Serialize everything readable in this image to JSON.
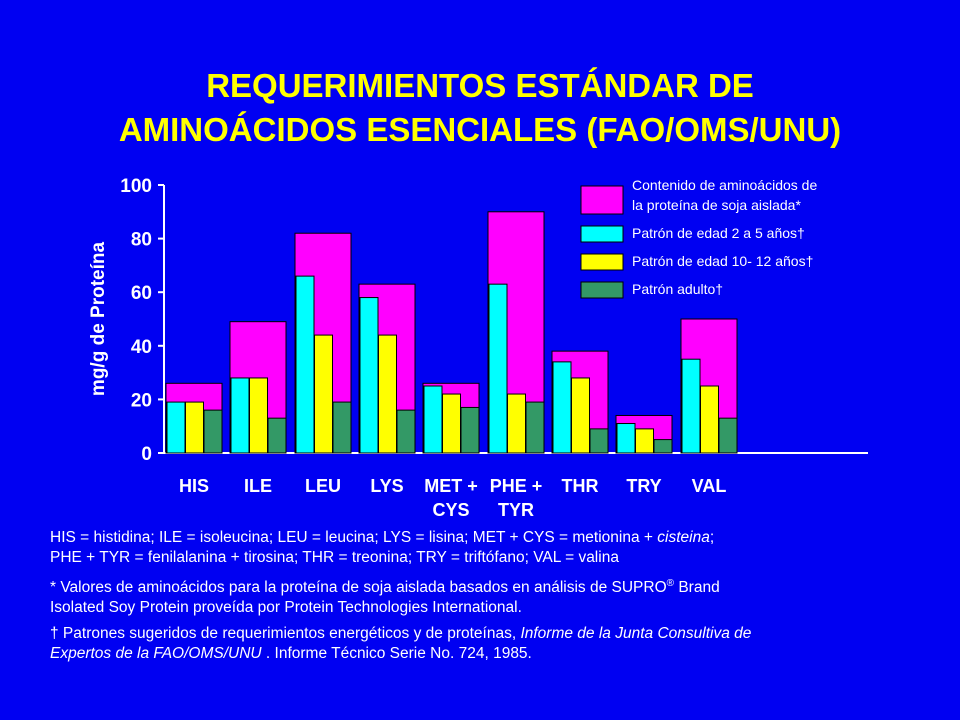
{
  "title_line1": "REQUERIMIENTOS ESTÁNDAR DE",
  "title_line2": "AMINOÁCIDOS ESENCIALES (FAO/OMS/UNU)",
  "chart_data": {
    "type": "bar",
    "ylabel": "mg/g de Proteína",
    "ylim": [
      0,
      100
    ],
    "yticks": [
      "0",
      "20",
      "40",
      "60",
      "80",
      "100"
    ],
    "categories": [
      [
        "HIS"
      ],
      [
        "ILE"
      ],
      [
        "LEU"
      ],
      [
        "LYS"
      ],
      [
        "MET +",
        "CYS"
      ],
      [
        "PHE +",
        "TYR"
      ],
      [
        "THR"
      ],
      [
        "TRY"
      ],
      [
        "VAL"
      ]
    ],
    "series": [
      {
        "name": "Contenido de aminoácidos de la proteína de soja aislada*",
        "legend_lines": [
          "Contenido de aminoácidos de",
          "la proteína de soja aislada*"
        ],
        "color": "#FF00FF",
        "values": [
          26,
          49,
          82,
          63,
          26,
          90,
          38,
          14,
          50
        ]
      },
      {
        "name": "Patrón  de edad 2 a 5 años†",
        "legend_lines": [
          "Patrón  de edad 2 a 5 años†"
        ],
        "color": "#00FFFF",
        "values": [
          19,
          28,
          66,
          58,
          25,
          63,
          34,
          11,
          35
        ]
      },
      {
        "name": "Patrón de edad 10- 12 años†",
        "legend_lines": [
          "Patrón de edad 10- 12 años†"
        ],
        "color": "#FFFF00",
        "values": [
          19,
          28,
          44,
          44,
          22,
          22,
          28,
          9,
          25
        ]
      },
      {
        "name": "Patrón adulto†",
        "legend_lines": [
          "Patrón adulto†"
        ],
        "color": "#339966",
        "values": [
          16,
          13,
          19,
          16,
          17,
          19,
          9,
          5,
          13
        ]
      }
    ],
    "legend_position": "top-right",
    "grid": false
  },
  "footnotes": {
    "abbrev_line1_a": "HIS = histidina; ILE = isoleucina; LEU = leucina; LYS = lisina; MET + CYS = metionina + ",
    "abbrev_line1_italic": "cisteina",
    "abbrev_line1_b": ";",
    "abbrev_line2": "PHE + TYR = fenilalanina + tirosina; THR = treonina; TRY = triftófano; VAL = valina",
    "soy_a": "* Valores de aminoácidos para la proteína de soja aislada basados en análisis de SUPRO",
    "soy_reg": "®",
    "soy_b": " Brand",
    "soy_line2": "Isolated Soy Protein proveída por Protein Technologies International.",
    "fao_a": "† Patrones sugeridos de requerimientos energéticos y de proteínas, ",
    "fao_italic1": "Informe de la Junta Consultiva de",
    "fao_italic2": "Expertos de la  FAO/OMS/UNU",
    "fao_b": " .  Informe Técnico Serie No. 724, 1985."
  }
}
